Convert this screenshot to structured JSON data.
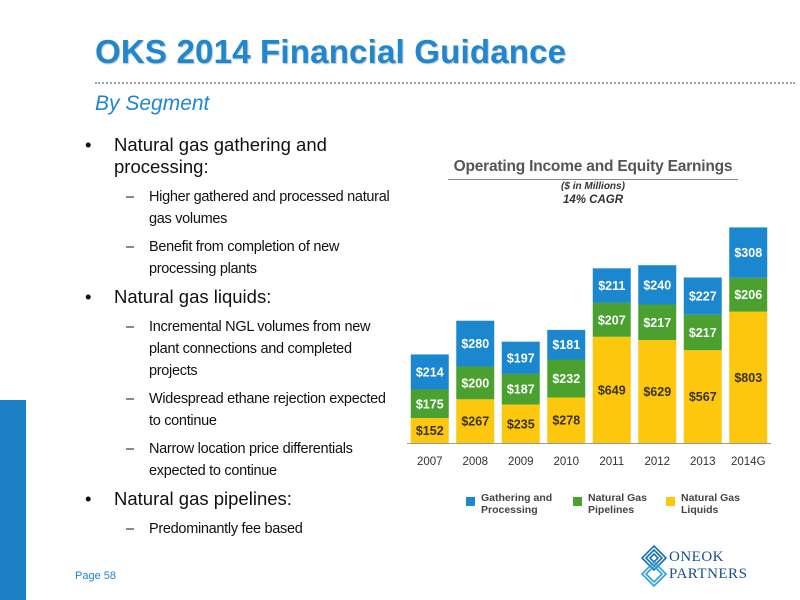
{
  "header": {
    "title": "OKS 2014 Financial Guidance",
    "subtitle": "By Segment"
  },
  "bullets": [
    {
      "text": "Natural gas gathering and processing:",
      "subs": [
        "Higher gathered and processed natural gas volumes",
        "Benefit from completion of new processing plants"
      ]
    },
    {
      "text": "Natural gas liquids:",
      "subs": [
        "Incremental NGL volumes from new plant connections and completed projects",
        "Widespread ethane rejection expected to continue",
        "Narrow location price differentials expected to continue"
      ]
    },
    {
      "text": "Natural gas pipelines:",
      "subs": [
        "Predominantly fee based"
      ]
    }
  ],
  "footer": {
    "page": "Page 58"
  },
  "logo": {
    "line1": "ONEOK",
    "line2": "PARTNERS"
  },
  "colors": {
    "gathering": "#1a87cf",
    "pipelines": "#4aa12f",
    "liquids": "#fcc70c",
    "title_blue": "#1f86cf"
  },
  "chart_data": {
    "type": "bar",
    "stacked": true,
    "title": "Operating Income and Equity Earnings",
    "units_note": "($ in Millions)",
    "annotation": "14% CAGR",
    "categories": [
      "2007",
      "2008",
      "2009",
      "2010",
      "2011",
      "2012",
      "2013",
      "2014G"
    ],
    "series": [
      {
        "name": "Natural Gas Liquids",
        "color": "#fcc70c",
        "values": [
          152,
          267,
          235,
          278,
          649,
          629,
          567,
          803
        ],
        "labels": [
          "$152",
          "$267",
          "$235",
          "$278",
          "$649",
          "$629",
          "$567",
          "$803"
        ]
      },
      {
        "name": "Natural Gas Pipelines",
        "color": "#4aa12f",
        "values": [
          175,
          200,
          187,
          232,
          207,
          217,
          217,
          206
        ],
        "labels": [
          "$175",
          "$200",
          "$187",
          "$232",
          "$207",
          "$217",
          "$217",
          "$206"
        ]
      },
      {
        "name": "Gathering and Processing",
        "color": "#1a87cf",
        "values": [
          214,
          280,
          197,
          181,
          211,
          240,
          227,
          308
        ],
        "labels": [
          "$214",
          "$280",
          "$197",
          "$181",
          "$211",
          "$240",
          "$227",
          "$308"
        ]
      }
    ],
    "legend": {
      "position": "bottom",
      "items": [
        {
          "name": "Gathering and Processing",
          "color": "#1a87cf"
        },
        {
          "name": "Natural Gas Pipelines",
          "color": "#4aa12f"
        },
        {
          "name": "Natural Gas Liquids",
          "color": "#fcc70c"
        }
      ]
    },
    "grid": false
  }
}
